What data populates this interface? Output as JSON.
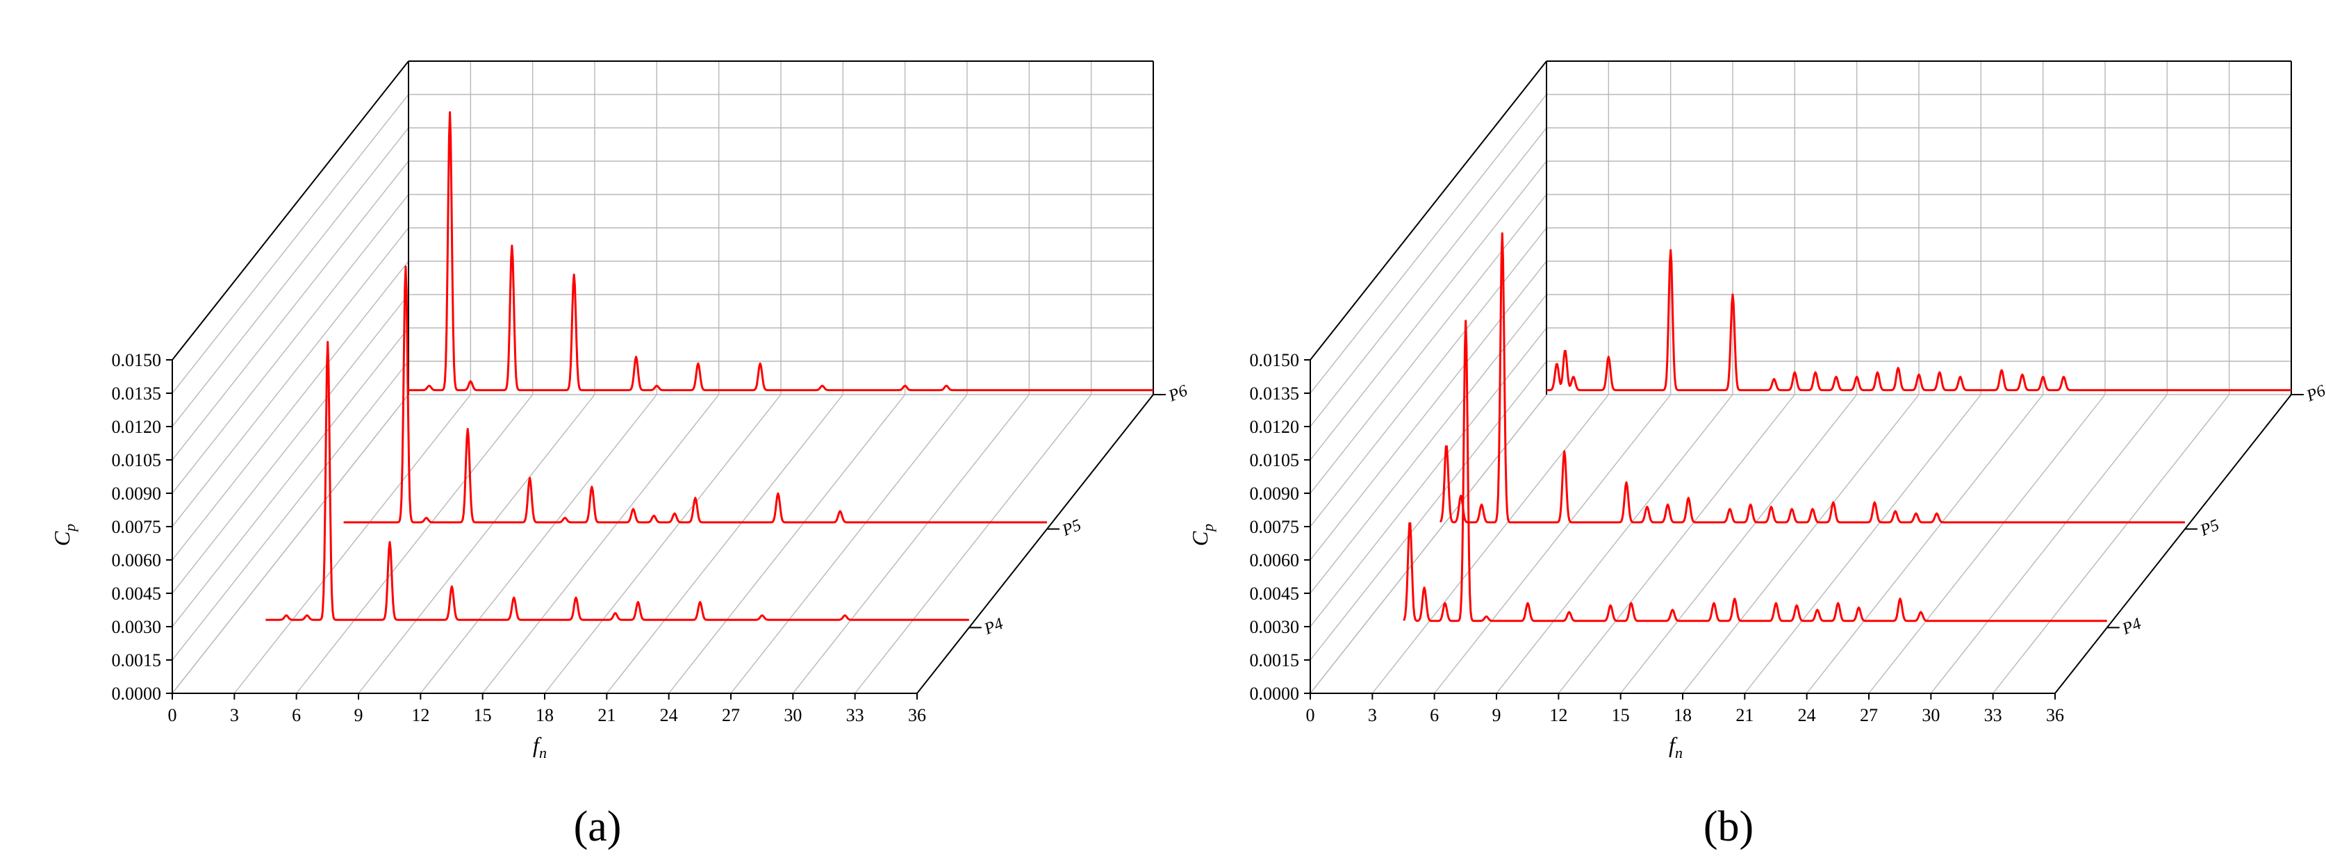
{
  "chart_data": [
    {
      "type": "line",
      "panel": "a",
      "panel_label": "(a)",
      "xlabel": "f",
      "xlabel_sub": "n",
      "ylabel": "C",
      "ylabel_sub": "p",
      "xlim": [
        0,
        36
      ],
      "ylim": [
        0.0,
        0.015
      ],
      "x_ticks": [
        "0",
        "3",
        "6",
        "9",
        "12",
        "15",
        "18",
        "21",
        "24",
        "27",
        "30",
        "33",
        "36"
      ],
      "y_ticks": [
        "0.0000",
        "0.0015",
        "0.0030",
        "0.0045",
        "0.0060",
        "0.0075",
        "0.0090",
        "0.0105",
        "0.0120",
        "0.0135",
        "0.0150"
      ],
      "grid": true,
      "line_color": "#ff0000",
      "series": [
        {
          "name": "P4",
          "baseline": 0.00035,
          "x_start": 2,
          "peaks": [
            [
              3.0,
              0.0002
            ],
            [
              4.0,
              0.0002
            ],
            [
              5.0,
              0.0125
            ],
            [
              8.0,
              0.0035
            ],
            [
              11.0,
              0.0015
            ],
            [
              14.0,
              0.001
            ],
            [
              17.0,
              0.001
            ],
            [
              18.9,
              0.0003
            ],
            [
              20.0,
              0.0008
            ],
            [
              23.0,
              0.0008
            ],
            [
              26.0,
              0.0002
            ],
            [
              30.0,
              0.0002
            ]
          ]
        },
        {
          "name": "P5",
          "baseline": 0.0003,
          "x_start": 2,
          "peaks": [
            [
              5.0,
              0.0115
            ],
            [
              6.0,
              0.0002
            ],
            [
              8.0,
              0.0042
            ],
            [
              11.0,
              0.002
            ],
            [
              12.7,
              0.0002
            ],
            [
              14.0,
              0.0016
            ],
            [
              16.0,
              0.0006
            ],
            [
              17.0,
              0.0003
            ],
            [
              18.0,
              0.0004
            ],
            [
              19.0,
              0.0011
            ],
            [
              23.0,
              0.0013
            ],
            [
              26.0,
              0.0005
            ]
          ]
        },
        {
          "name": "P6",
          "baseline": 0.0002,
          "x_start": 0,
          "peaks": [
            [
              1.0,
              0.0002
            ],
            [
              2.0,
              0.0125
            ],
            [
              3.0,
              0.0004
            ],
            [
              5.0,
              0.0065
            ],
            [
              8.0,
              0.0052
            ],
            [
              11.0,
              0.0015
            ],
            [
              12.0,
              0.0002
            ],
            [
              14.0,
              0.0012
            ],
            [
              17.0,
              0.0012
            ],
            [
              20.0,
              0.0002
            ],
            [
              24.0,
              0.0002
            ],
            [
              26.0,
              0.0002
            ]
          ]
        }
      ]
    },
    {
      "type": "line",
      "panel": "b",
      "panel_label": "(b)",
      "xlabel": "f",
      "xlabel_sub": "n",
      "ylabel": "C",
      "ylabel_sub": "p",
      "xlim": [
        0,
        36
      ],
      "ylim": [
        0.0,
        0.015
      ],
      "x_ticks": [
        "0",
        "3",
        "6",
        "9",
        "12",
        "15",
        "18",
        "21",
        "24",
        "27",
        "30",
        "33",
        "36"
      ],
      "y_ticks": [
        "0.0000",
        "0.0015",
        "0.0030",
        "0.0045",
        "0.0060",
        "0.0075",
        "0.0090",
        "0.0105",
        "0.0120",
        "0.0135",
        "0.0150"
      ],
      "grid": true,
      "line_color": "#ff0000",
      "series": [
        {
          "name": "P4",
          "baseline": 0.0003,
          "x_start": 2,
          "peaks": [
            [
              2.3,
              0.0045
            ],
            [
              3.0,
              0.0015
            ],
            [
              4.0,
              0.0008
            ],
            [
              5.0,
              0.0135
            ],
            [
              6.0,
              0.0002
            ],
            [
              8.0,
              0.0008
            ],
            [
              10.0,
              0.0004
            ],
            [
              12.0,
              0.0007
            ],
            [
              13.0,
              0.0008
            ],
            [
              15.0,
              0.0005
            ],
            [
              17.0,
              0.0008
            ],
            [
              18.0,
              0.001
            ],
            [
              20.0,
              0.0008
            ],
            [
              21.0,
              0.0007
            ],
            [
              22.0,
              0.0005
            ],
            [
              23.0,
              0.0008
            ],
            [
              24.0,
              0.0006
            ],
            [
              26.0,
              0.001
            ],
            [
              27.0,
              0.0004
            ]
          ]
        },
        {
          "name": "P5",
          "baseline": 0.0003,
          "x_start": 0,
          "peaks": [
            [
              0.3,
              0.0035
            ],
            [
              1.0,
              0.0012
            ],
            [
              2.0,
              0.0008
            ],
            [
              3.0,
              0.013
            ],
            [
              6.0,
              0.0032
            ],
            [
              9.0,
              0.0018
            ],
            [
              10.0,
              0.0007
            ],
            [
              11.0,
              0.0008
            ],
            [
              12.0,
              0.0011
            ],
            [
              14.0,
              0.0006
            ],
            [
              15.0,
              0.0008
            ],
            [
              16.0,
              0.0007
            ],
            [
              17.0,
              0.0006
            ],
            [
              18.0,
              0.0006
            ],
            [
              19.0,
              0.0009
            ],
            [
              21.0,
              0.0009
            ],
            [
              22.0,
              0.0005
            ],
            [
              23.0,
              0.0004
            ],
            [
              24.0,
              0.0004
            ]
          ]
        },
        {
          "name": "P6",
          "baseline": 0.0002,
          "x_start": 0,
          "peaks": [
            [
              0.5,
              0.0012
            ],
            [
              0.9,
              0.0018
            ],
            [
              1.3,
              0.0006
            ],
            [
              3.0,
              0.0015
            ],
            [
              6.0,
              0.0063
            ],
            [
              9.0,
              0.0043
            ],
            [
              11.0,
              0.0005
            ],
            [
              12.0,
              0.0008
            ],
            [
              13.0,
              0.0008
            ],
            [
              14.0,
              0.0006
            ],
            [
              15.0,
              0.0006
            ],
            [
              16.0,
              0.0008
            ],
            [
              17.0,
              0.001
            ],
            [
              18.0,
              0.0007
            ],
            [
              19.0,
              0.0008
            ],
            [
              20.0,
              0.0006
            ],
            [
              22.0,
              0.0009
            ],
            [
              23.0,
              0.0007
            ],
            [
              24.0,
              0.0006
            ],
            [
              25.0,
              0.0006
            ]
          ]
        }
      ]
    }
  ]
}
